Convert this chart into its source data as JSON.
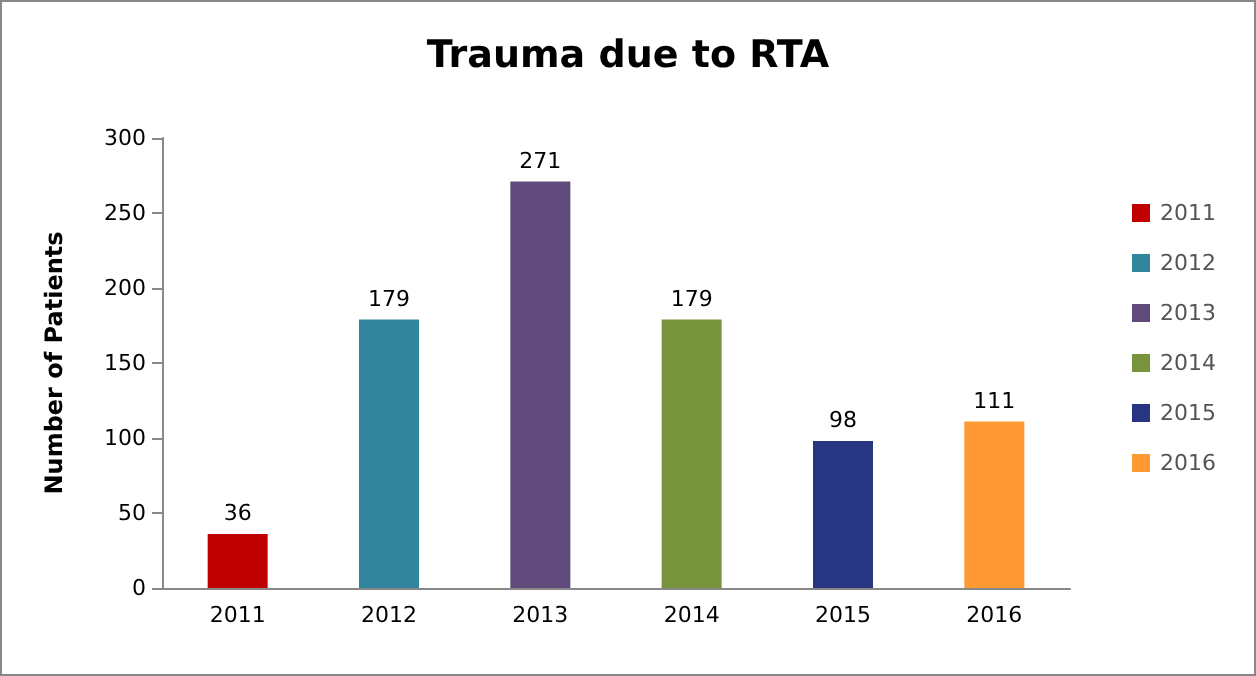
{
  "chart_data": {
    "type": "bar",
    "title": "Trauma due to RTA",
    "ylabel": "Number of Patients",
    "categories": [
      "2011",
      "2012",
      "2013",
      "2014",
      "2015",
      "2016"
    ],
    "series": [
      {
        "name": "2011",
        "color": "#c00000",
        "values": [
          36,
          null,
          null,
          null,
          null,
          null
        ]
      },
      {
        "name": "2012",
        "color": "#31859c",
        "values": [
          null,
          179,
          null,
          null,
          null,
          null
        ]
      },
      {
        "name": "2013",
        "color": "#604a7b",
        "values": [
          null,
          null,
          271,
          null,
          null,
          null
        ]
      },
      {
        "name": "2014",
        "color": "#77933c",
        "values": [
          null,
          null,
          null,
          179,
          null,
          null
        ]
      },
      {
        "name": "2015",
        "color": "#283583",
        "values": [
          null,
          null,
          null,
          null,
          98,
          null
        ]
      },
      {
        "name": "2016",
        "color": "#ff9933",
        "values": [
          null,
          null,
          null,
          null,
          null,
          111
        ]
      }
    ],
    "ylim": [
      0,
      300
    ],
    "yticks": [
      0,
      50,
      100,
      150,
      200,
      250,
      300
    ],
    "grid": false,
    "legend": "right",
    "data_labels": true
  }
}
